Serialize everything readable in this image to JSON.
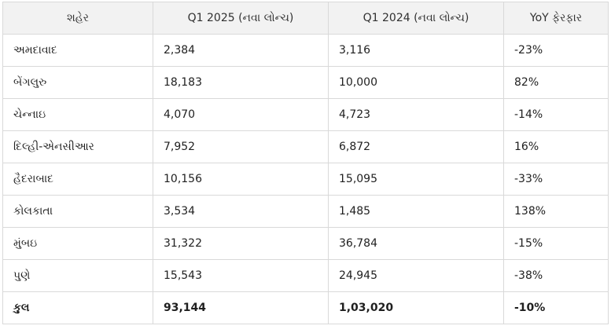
{
  "table": {
    "headers": [
      "શહેર",
      "Q1 2025 (નવા લોન્ચ)",
      "Q1 2024 (નવા લોન્ચ)",
      "YoY ફેરફાર"
    ],
    "rows": [
      [
        "અમદાવાદ",
        "2,384",
        "3,116",
        "-23%"
      ],
      [
        "બેંગલુરુ",
        "18,183",
        "10,000",
        "82%"
      ],
      [
        "ચેન્નાઇ",
        "4,070",
        "4,723",
        "-14%"
      ],
      [
        "દિલ્હી-એનસીઆર",
        "7,952",
        "6,872",
        "16%"
      ],
      [
        "હૈદરાબાદ",
        "10,156",
        "15,095",
        "-33%"
      ],
      [
        "કોલકાતા",
        "3,534",
        "1,485",
        "138%"
      ],
      [
        "મુંબઇ",
        "31,322",
        "36,784",
        "-15%"
      ],
      [
        "પુણે",
        "15,543",
        "24,945",
        "-38%"
      ]
    ],
    "total": [
      "કુલ",
      "93,144",
      "1,03,020",
      "-10%"
    ]
  }
}
